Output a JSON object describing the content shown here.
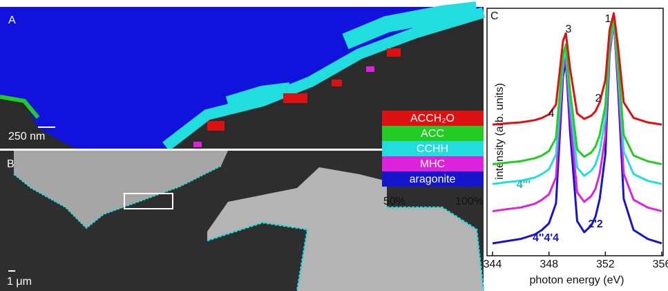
{
  "panels": {
    "a_label": "A",
    "a_scale": "250 nm",
    "b_label": "B",
    "b_scale": "1 μm",
    "colorbar_labels": [
      "50%",
      "100%"
    ]
  },
  "chart_data": {
    "type": "line",
    "label": "C",
    "xlabel": "photon energy (eV)",
    "ylabel": "intensity (arb. units)",
    "x": [
      344,
      345,
      346,
      347,
      347.5,
      348,
      348.5,
      349,
      349.2,
      349.5,
      350,
      350.5,
      351,
      351.3,
      351.6,
      352,
      352.3,
      352.6,
      352.9,
      353.3,
      354,
      355,
      356
    ],
    "series": [
      {
        "name": "ACCH₂O",
        "color": "#dd1111",
        "values": [
          5.3,
          5.35,
          5.39,
          5.48,
          5.57,
          5.71,
          6.11,
          8.68,
          8.99,
          7.55,
          5.75,
          5.53,
          5.66,
          5.84,
          6.2,
          7.1,
          9.13,
          9.8,
          8.45,
          6.2,
          5.57,
          5.39,
          5.3
        ]
      },
      {
        "name": "ACC",
        "color": "#22cc22",
        "values": [
          3.7,
          3.76,
          3.82,
          3.94,
          4.05,
          4.23,
          4.76,
          8.13,
          8.54,
          6.65,
          4.29,
          4.0,
          4.17,
          4.41,
          4.88,
          6.06,
          8.72,
          9.6,
          7.83,
          4.88,
          4.05,
          3.82,
          3.7
        ]
      },
      {
        "name": "CCHH",
        "color": "#22dddd",
        "values": [
          2.9,
          2.97,
          3.03,
          3.16,
          3.3,
          3.49,
          4.09,
          7.85,
          8.31,
          6.2,
          3.56,
          3.23,
          3.43,
          3.69,
          4.22,
          5.54,
          8.51,
          9.5,
          7.52,
          4.22,
          3.3,
          3.03,
          2.9
        ]
      },
      {
        "name": "MHC",
        "color": "#dd22dd",
        "values": [
          1.8,
          1.88,
          1.95,
          2.1,
          2.26,
          2.48,
          3.17,
          7.5,
          8.03,
          5.6,
          2.56,
          2.18,
          2.41,
          2.71,
          3.32,
          4.84,
          8.26,
          9.4,
          7.12,
          3.32,
          2.26,
          1.95,
          1.8
        ]
      },
      {
        "name": "aragonite",
        "color": "#1515cc",
        "values": [
          0.5,
          0.59,
          0.68,
          0.86,
          1.04,
          1.31,
          2.12,
          7.25,
          7.88,
          5.0,
          1.4,
          0.95,
          1.22,
          1.58,
          2.3,
          4.1,
          8.15,
          9.5,
          6.8,
          2.3,
          1.04,
          0.68,
          0.5
        ]
      }
    ],
    "annotations": [
      {
        "text": "1",
        "color": "#111111"
      },
      {
        "text": "2",
        "color": "#111111"
      },
      {
        "text": "3",
        "color": "#111111"
      },
      {
        "text": "4",
        "color": "#111111"
      },
      {
        "text": "4'''",
        "color": "#22bbbb"
      },
      {
        "text": "2'2",
        "color": "#1515cc"
      },
      {
        "text": "4''4'4",
        "color": "#1515cc"
      }
    ],
    "xlim": [
      344,
      356
    ],
    "ylim": [
      0,
      10
    ],
    "xticks": [
      344,
      348,
      352,
      356
    ]
  }
}
